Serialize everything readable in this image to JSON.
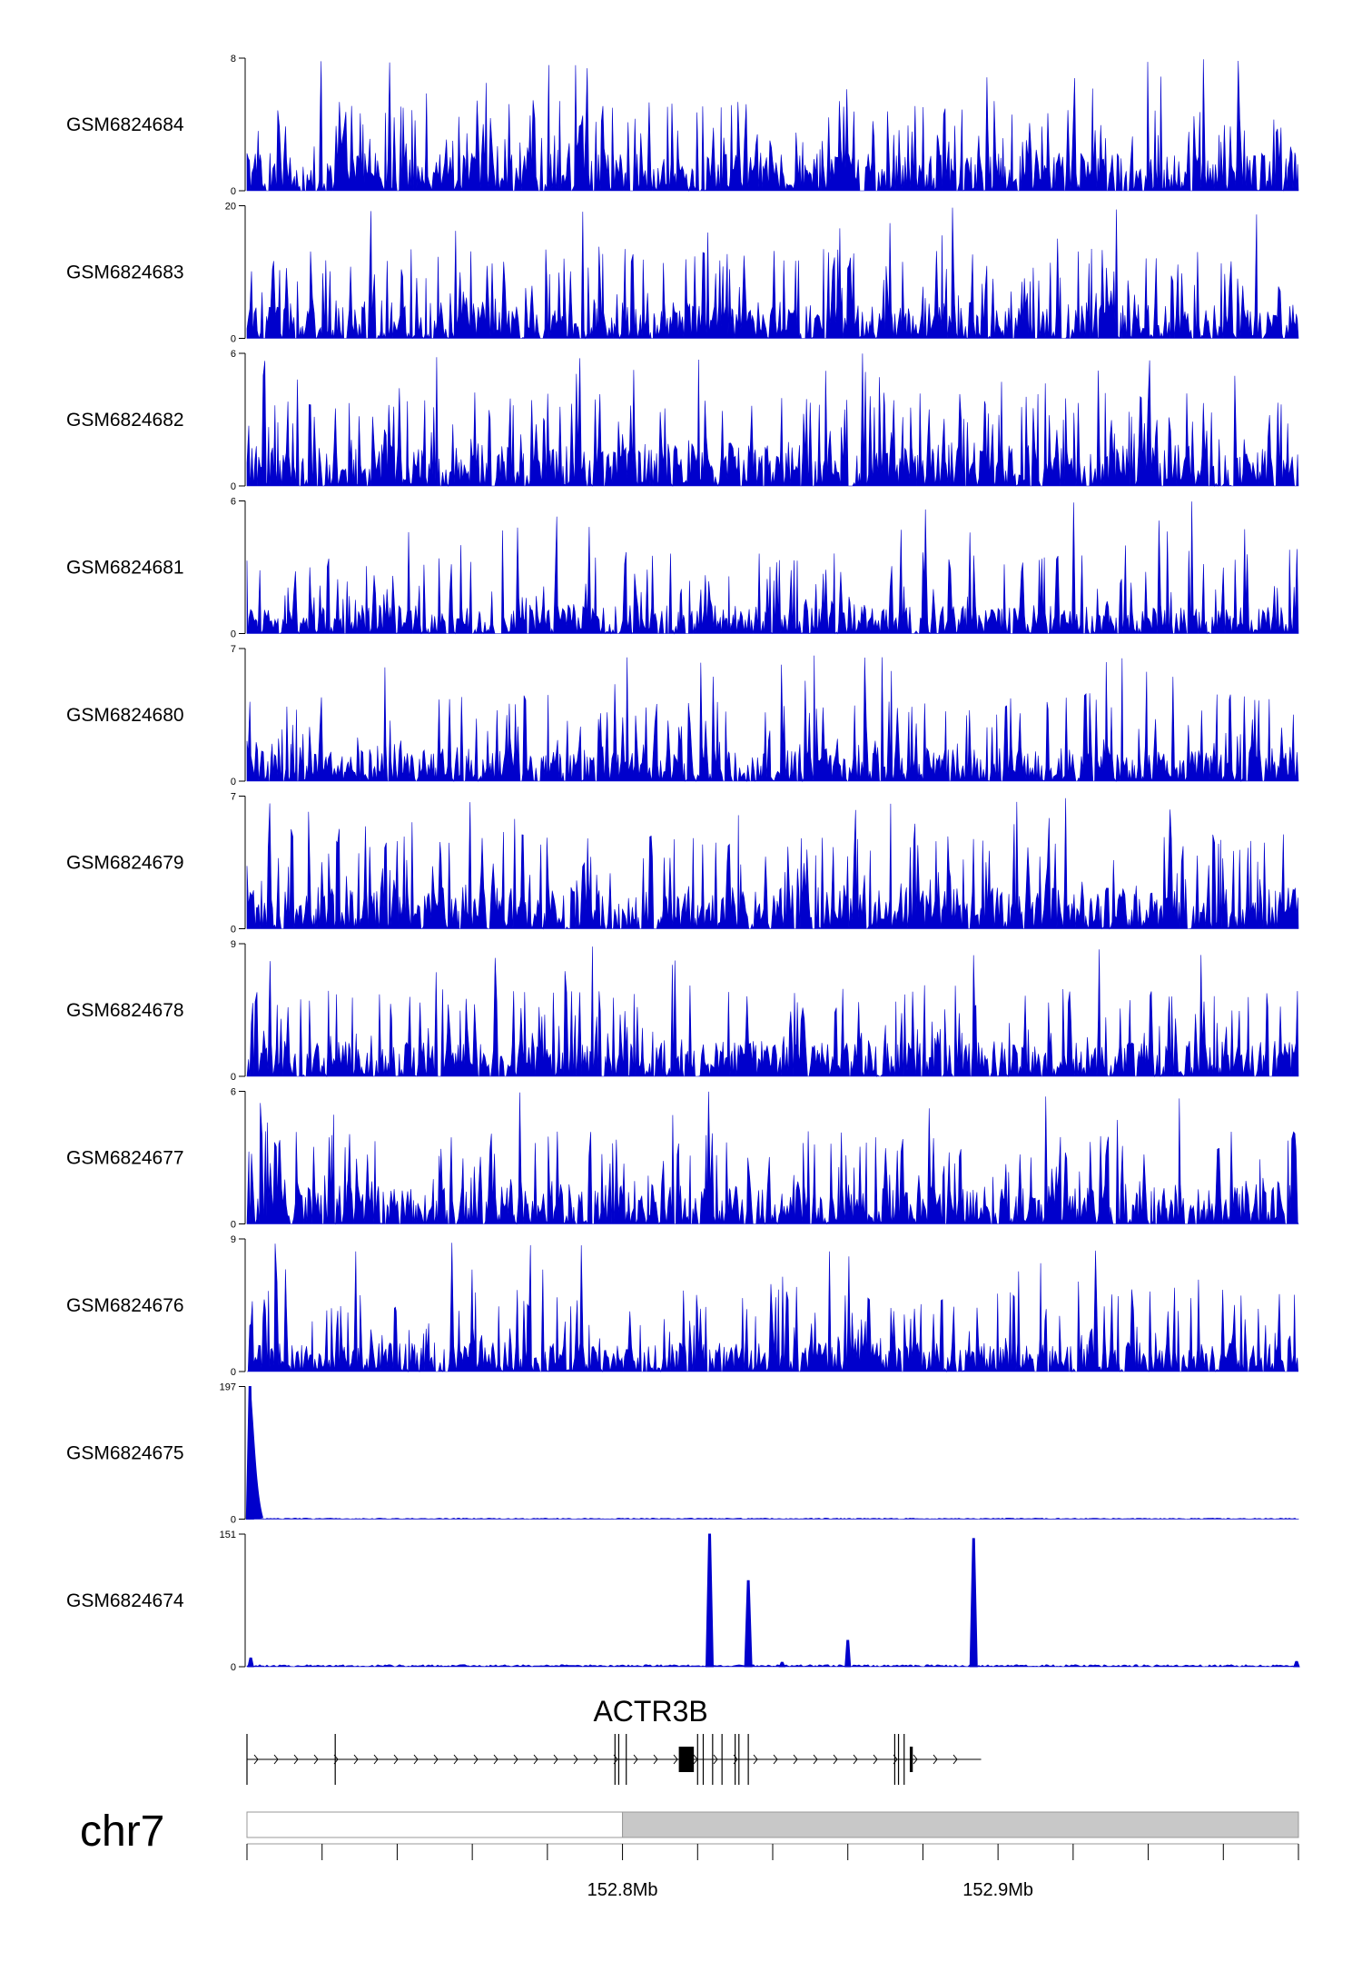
{
  "chart_data": {
    "type": "area",
    "series_color": "#0000cc",
    "region": {
      "chromosome": "chr7",
      "start_mb": 152.7,
      "end_mb": 152.98,
      "axis_tick_labels": [
        "152.8Mb",
        "152.9Mb"
      ],
      "axis_tick_values_mb": [
        152.8,
        152.9
      ]
    },
    "tracks": [
      {
        "name": "GSM6824684",
        "ylim": [
          0,
          8
        ],
        "ymax_label": "8",
        "ymin_label": "0",
        "profile": "noise",
        "level": 2.3,
        "peaks": []
      },
      {
        "name": "GSM6824683",
        "ylim": [
          0,
          20
        ],
        "ymax_label": "20",
        "ymin_label": "0",
        "profile": "noise",
        "level": 5.5,
        "peaks": []
      },
      {
        "name": "GSM6824682",
        "ylim": [
          0,
          6
        ],
        "ymax_label": "6",
        "ymin_label": "0",
        "profile": "noise",
        "level": 1.9,
        "peaks": []
      },
      {
        "name": "GSM6824681",
        "ylim": [
          0,
          6
        ],
        "ymax_label": "6",
        "ymin_label": "0",
        "profile": "noise",
        "level": 1.3,
        "peaks": []
      },
      {
        "name": "GSM6824680",
        "ylim": [
          0,
          7
        ],
        "ymax_label": "7",
        "ymin_label": "0",
        "profile": "noise",
        "level": 1.8,
        "peaks": []
      },
      {
        "name": "GSM6824679",
        "ylim": [
          0,
          7
        ],
        "ymax_label": "7",
        "ymin_label": "0",
        "profile": "noise",
        "level": 2.2,
        "peaks": []
      },
      {
        "name": "GSM6824678",
        "ylim": [
          0,
          9
        ],
        "ymax_label": "9",
        "ymin_label": "0",
        "profile": "noise",
        "level": 2.4,
        "peaks": []
      },
      {
        "name": "GSM6824677",
        "ylim": [
          0,
          6
        ],
        "ymax_label": "6",
        "ymin_label": "0",
        "profile": "noise",
        "level": 1.8,
        "peaks": []
      },
      {
        "name": "GSM6824676",
        "ylim": [
          0,
          9
        ],
        "ymax_label": "9",
        "ymin_label": "0",
        "profile": "noise",
        "level": 2.0,
        "peaks": []
      },
      {
        "name": "GSM6824675",
        "ylim": [
          0,
          197
        ],
        "ymax_label": "197",
        "ymin_label": "0",
        "profile": "sparse",
        "level": 1.0,
        "peaks": [
          {
            "pos_mb": 152.7008,
            "height": 197
          }
        ]
      },
      {
        "name": "GSM6824674",
        "ylim": [
          0,
          151
        ],
        "ymax_label": "151",
        "ymin_label": "0",
        "profile": "sparse",
        "level": 2.0,
        "peaks": [
          {
            "pos_mb": 152.701,
            "height": 10
          },
          {
            "pos_mb": 152.8232,
            "height": 151
          },
          {
            "pos_mb": 152.8335,
            "height": 98
          },
          {
            "pos_mb": 152.8425,
            "height": 5
          },
          {
            "pos_mb": 152.86,
            "height": 30
          },
          {
            "pos_mb": 152.8935,
            "height": 146
          },
          {
            "pos_mb": 152.9795,
            "height": 6
          }
        ]
      }
    ],
    "gene": {
      "name": "ACTR3B",
      "strand": "+",
      "start_mb": 152.7,
      "end_mb": 152.8955,
      "exons_mb": [
        {
          "pos": 152.7,
          "tall": false
        },
        {
          "pos": 152.7235,
          "tall": false
        },
        {
          "pos": 152.798,
          "tall": false
        },
        {
          "pos": 152.799,
          "tall": false
        },
        {
          "pos": 152.801,
          "tall": false
        },
        {
          "pos": 152.815,
          "width": 0.004,
          "tall": true
        },
        {
          "pos": 152.82,
          "tall": false
        },
        {
          "pos": 152.8215,
          "tall": false
        },
        {
          "pos": 152.824,
          "tall": false
        },
        {
          "pos": 152.8265,
          "tall": false
        },
        {
          "pos": 152.83,
          "tall": false
        },
        {
          "pos": 152.831,
          "tall": false
        },
        {
          "pos": 152.8335,
          "tall": false
        },
        {
          "pos": 152.8725,
          "tall": false
        },
        {
          "pos": 152.8735,
          "tall": false
        },
        {
          "pos": 152.875,
          "tall": false
        },
        {
          "pos": 152.8765,
          "width": 0.0008,
          "tall": true
        }
      ]
    },
    "ideogram": {
      "label": "chr7",
      "light_band_end_mb": 152.8,
      "light_color": "#ffffff",
      "dark_color": "#c8c8c8"
    }
  }
}
